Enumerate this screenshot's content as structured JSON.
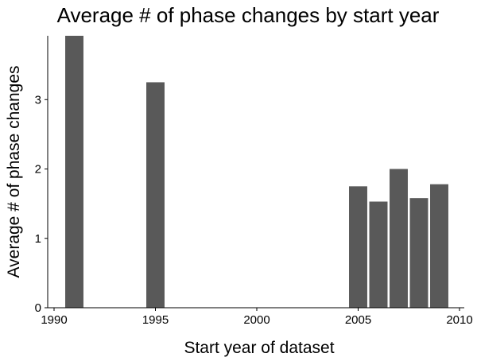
{
  "chart_data": {
    "type": "bar",
    "title": "Average # of phase changes by start year",
    "xlabel": "Start year of dataset",
    "ylabel": "Average # of phase changes",
    "x": [
      1991,
      1995,
      2005,
      2006,
      2007,
      2008,
      2009
    ],
    "values": [
      3.92,
      3.25,
      1.75,
      1.53,
      2.0,
      1.58,
      1.78
    ],
    "xlim": [
      1990,
      2010
    ],
    "ylim": [
      0,
      3.92
    ],
    "x_ticks": [
      1990,
      1995,
      2000,
      2005,
      2010
    ],
    "x_tick_labels": [
      "1990",
      "1995",
      "2000",
      "2005",
      "2010"
    ],
    "y_ticks": [
      0,
      1,
      2,
      3
    ],
    "y_tick_labels": [
      "0",
      "1",
      "2",
      "3"
    ],
    "bar_width_years": 0.9,
    "grid": false,
    "legend": "none",
    "colors": {
      "bar": "#595959",
      "axis": "#000000",
      "background": "#ffffff"
    }
  }
}
